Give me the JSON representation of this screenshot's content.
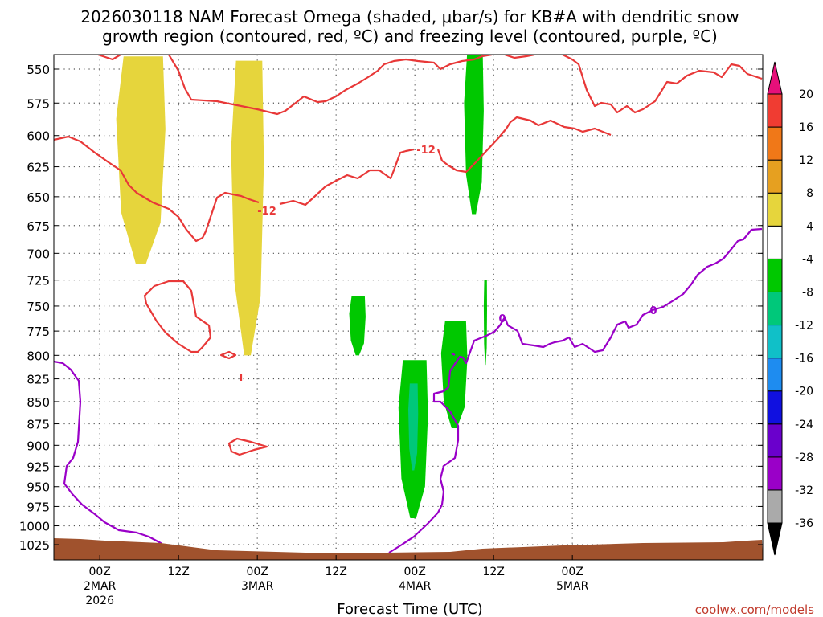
{
  "chart_data": {
    "type": "time-height cross section (shaded + contours)",
    "title_line1": "2026030118 NAM Forecast Omega (shaded, μbar/s) for KB#A with dendritic snow",
    "title_line2": "growth region (contoured, red, ºC) and freezing level (contoured, purple, ºC)",
    "xlabel": "Forecast Time (UTC)",
    "watermark": "coolwx.com/models",
    "x_range_hours": [
      -7,
      101
    ],
    "y_range_hPa": [
      540,
      1040
    ],
    "y_ticks": [
      550,
      575,
      600,
      625,
      650,
      675,
      700,
      725,
      750,
      775,
      800,
      825,
      850,
      875,
      900,
      925,
      950,
      975,
      1000,
      1025
    ],
    "x_ticks": [
      {
        "hour": 0,
        "label": "00Z",
        "sub1": "2MAR",
        "sub2": "2026"
      },
      {
        "hour": 12,
        "label": "12Z",
        "sub1": "",
        "sub2": ""
      },
      {
        "hour": 24,
        "label": "00Z",
        "sub1": "3MAR",
        "sub2": ""
      },
      {
        "hour": 36,
        "label": "12Z",
        "sub1": "",
        "sub2": ""
      },
      {
        "hour": 48,
        "label": "00Z",
        "sub1": "4MAR",
        "sub2": ""
      },
      {
        "hour": 60,
        "label": "12Z",
        "sub1": "",
        "sub2": ""
      },
      {
        "hour": 72,
        "label": "00Z",
        "sub1": "5MAR",
        "sub2": ""
      }
    ],
    "colorbar": {
      "levels": [
        -36,
        -32,
        -28,
        -24,
        -20,
        -16,
        -12,
        -8,
        -4,
        4,
        8,
        12,
        16,
        20
      ],
      "colors": [
        "#aaaaaa",
        "#9a00c8",
        "#6a00cc",
        "#1010e0",
        "#1e8cf0",
        "#10c0c8",
        "#00c87a",
        "#00c800",
        "#ffffff",
        "#e6d53c",
        "#e6a020",
        "#f07818",
        "#f03c32",
        "#e6107a"
      ],
      "under_color": "#000000",
      "over_color": "#e6107a"
    },
    "omega_regions": [
      {
        "band": "4 to 8",
        "color": "#e6d53c",
        "hours": [
          2.5,
          10
        ],
        "p_hPa": [
          541,
          710
        ]
      },
      {
        "band": "4 to 8",
        "color": "#e6d53c",
        "hours": [
          20,
          25
        ],
        "p_hPa": [
          544,
          800
        ]
      },
      {
        "band": "-8 to -4",
        "color": "#00c800",
        "hours": [
          38,
          40.5
        ],
        "p_hPa": [
          740,
          800
        ]
      },
      {
        "band": "-8 to -4",
        "color": "#00c800",
        "hours": [
          45.5,
          50
        ],
        "p_hPa": [
          805,
          990
        ]
      },
      {
        "band": "-8 to -4",
        "color": "#00c800",
        "hours": [
          52,
          56
        ],
        "p_hPa": [
          765,
          880
        ]
      },
      {
        "band": "-8 to -4",
        "color": "#00c800",
        "hours": [
          55.5,
          58.5
        ],
        "p_hPa": [
          540,
          665
        ]
      },
      {
        "band": "-8 to -4",
        "color": "#00c800",
        "hours": [
          58.5,
          59
        ],
        "p_hPa": [
          725,
          810
        ]
      },
      {
        "band": "-12 to -8",
        "color": "#00c87a",
        "hours": [
          47,
          48.5
        ],
        "p_hPa": [
          830,
          930
        ]
      }
    ],
    "contours": [
      {
        "name": "dendritic growth region bounds",
        "color": "#e83838",
        "label": "-12"
      },
      {
        "name": "freezing level",
        "color": "#9a00c8",
        "label": "0"
      }
    ],
    "terrain_color": "#a0522d"
  }
}
